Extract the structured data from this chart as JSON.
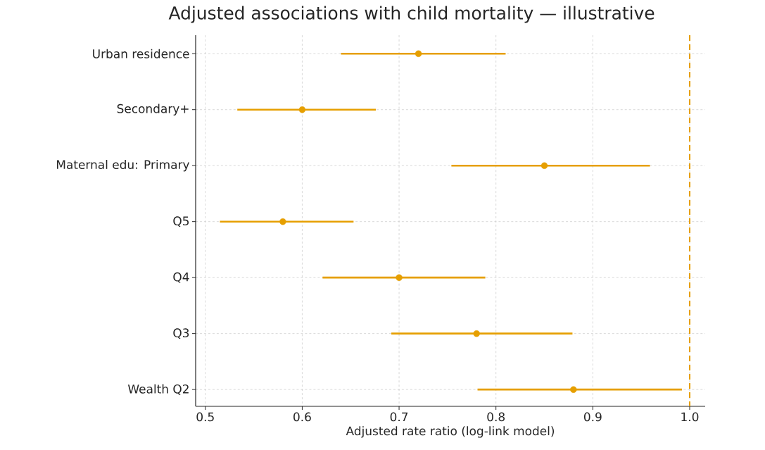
{
  "chart_data": {
    "type": "scatter",
    "orientation": "horizontal",
    "title": "Adjusted associations with child mortality — illustrative",
    "xlabel": "Adjusted rate ratio (log-link model)",
    "categories": [
      "Urban residence",
      "Secondary+",
      "Maternal edu: Primary",
      "Q5",
      "Q4",
      "Q3",
      "Wealth Q2"
    ],
    "values": [
      0.72,
      0.6,
      0.85,
      0.58,
      0.7,
      0.78,
      0.88
    ],
    "errors": [
      [
        0.64,
        0.81
      ],
      [
        0.533,
        0.676
      ],
      [
        0.754,
        0.959
      ],
      [
        0.515,
        0.653
      ],
      [
        0.621,
        0.789
      ],
      [
        0.692,
        0.879
      ],
      [
        0.781,
        0.992
      ]
    ],
    "color": "#e69f00",
    "xlim": [
      0.49,
      1.016
    ],
    "xticks": [
      0.5,
      0.6,
      0.7,
      0.8,
      0.9,
      {
        "value": 1.0,
        "label": "1.0"
      }
    ],
    "grid": true,
    "ref_lines": [
      {
        "axis": "x",
        "value": 1.0,
        "color": "#e69f00",
        "line_style": "dashed"
      }
    ]
  }
}
